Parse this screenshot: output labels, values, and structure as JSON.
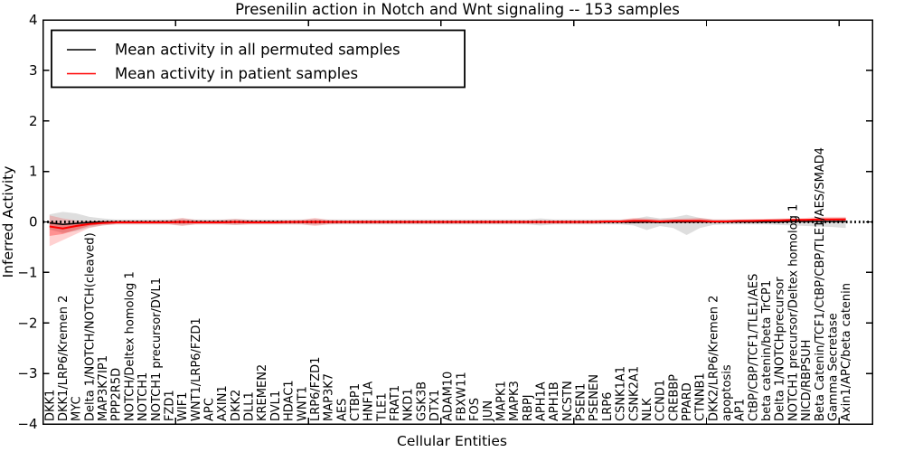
{
  "legend": {
    "items": [
      {
        "label": "Mean activity in all permuted samples",
        "color": "#000000"
      },
      {
        "label": "Mean activity in patient samples",
        "color": "#ff0000"
      }
    ]
  },
  "colors": {
    "permuted_line": "#000000",
    "permuted_band": "#000000",
    "patient_line": "#ff0000",
    "patient_band": "#ff0000",
    "zero_line": "#000000",
    "background": "#ffffff"
  },
  "chart_data": {
    "type": "line",
    "title": "Presenilin action in Notch and Wnt signaling -- 153 samples",
    "xlabel": "Cellular Entities",
    "ylabel": "Inferred Activity",
    "ylim": [
      -4,
      4
    ],
    "yticks": [
      -4,
      -3,
      -2,
      -1,
      0,
      1,
      2,
      3,
      4
    ],
    "xlim": [
      0,
      62.5
    ],
    "xticks": [
      10,
      20,
      30,
      40,
      50,
      60
    ],
    "grid": false,
    "zero_line": true,
    "legend_position": "upper left",
    "categories": [
      "DKK1",
      "DKK1/LRP6/Kremen 2",
      "MYC",
      "Delta 1/NOTCH/NOTCH(cleaved)",
      "MAP3K7IP1",
      "PPP2R5D",
      "NOTCH/Deltex homolog 1",
      "NOTCH1",
      "NOTCH1 precursor/DVL1",
      "FZD1",
      "WIF1",
      "WNT1/LRP6/FZD1",
      "APC",
      "AXIN1",
      "DKK2",
      "DLL1",
      "KREMEN2",
      "DVL1",
      "HDAC1",
      "WNT1",
      "LRP6/FZD1",
      "MAP3K7",
      "AES",
      "CTBP1",
      "HNF1A",
      "TLE1",
      "FRAT1",
      "NKD1",
      "GSK3B",
      "DTX1",
      "ADAM10",
      "FBXW11",
      "FOS",
      "JUN",
      "MAPK1",
      "MAPK3",
      "RBPJ",
      "APH1A",
      "APH1B",
      "NCSTN",
      "PSEN1",
      "PSENEN",
      "LRP6",
      "CSNK1A1",
      "CSNK2A1",
      "NLK",
      "CCND1",
      "CREBBP",
      "PPARD",
      "CTNNB1",
      "DKK2/LRP6/Kremen 2",
      "apoptosis",
      "AP1",
      "CtBP/CBP/TCF1/TLE1/AES",
      "beta catenin/beta TrCP1",
      "Delta 1/NOTCHprecursor",
      "NOTCH1 precursor/Deltex homolog 1",
      "NICD/RBPSUH",
      "Beta Catenin/TCF1/CtBP/CBP/TLE1/AES/SMAD4",
      "Gamma Secretase",
      "Axin1/APC/beta catenin"
    ],
    "series": [
      {
        "name": "Mean activity in all permuted samples",
        "color": "#000000",
        "line_width": 1.5,
        "band_color": "#000000",
        "band_opacity": 0.13,
        "values": [
          -0.02,
          -0.05,
          -0.03,
          -0.01,
          0,
          0,
          0,
          0,
          0,
          0,
          0,
          0,
          0,
          0,
          0,
          0,
          0,
          0,
          0,
          0,
          0,
          0,
          0,
          0,
          0,
          0,
          0,
          0,
          0,
          0,
          0,
          0,
          0,
          0,
          0,
          0,
          0,
          0,
          0,
          0,
          0,
          0,
          0,
          0,
          -0.01,
          0,
          -0.01,
          0,
          0,
          0,
          0,
          0,
          0,
          0,
          0,
          0,
          0.01,
          0.01,
          0.01,
          0.01,
          0.01
        ],
        "band_upper": [
          0.15,
          0.2,
          0.17,
          0.1,
          0.07,
          0.05,
          0.05,
          0.05,
          0.05,
          0.05,
          0.07,
          0.05,
          0.05,
          0.05,
          0.06,
          0.05,
          0.05,
          0.05,
          0.05,
          0.05,
          0.06,
          0.05,
          0.05,
          0.05,
          0.05,
          0.05,
          0.05,
          0.05,
          0.05,
          0.05,
          0.05,
          0.05,
          0.05,
          0.05,
          0.05,
          0.05,
          0.05,
          0.07,
          0.05,
          0.05,
          0.05,
          0.05,
          0.05,
          0.05,
          0.06,
          0.11,
          0.07,
          0.09,
          0.14,
          0.08,
          0.05,
          0.05,
          0.05,
          0.05,
          0.05,
          0.06,
          0.06,
          0.06,
          0.07,
          0.07,
          0.08
        ],
        "band_lower": [
          -0.15,
          -0.22,
          -0.18,
          -0.11,
          -0.07,
          -0.05,
          -0.05,
          -0.05,
          -0.05,
          -0.05,
          -0.07,
          -0.05,
          -0.05,
          -0.05,
          -0.06,
          -0.05,
          -0.05,
          -0.05,
          -0.05,
          -0.05,
          -0.06,
          -0.05,
          -0.05,
          -0.05,
          -0.05,
          -0.05,
          -0.05,
          -0.05,
          -0.05,
          -0.05,
          -0.05,
          -0.05,
          -0.05,
          -0.05,
          -0.05,
          -0.05,
          -0.05,
          -0.07,
          -0.05,
          -0.05,
          -0.05,
          -0.05,
          -0.05,
          -0.05,
          -0.07,
          -0.16,
          -0.08,
          -0.12,
          -0.26,
          -0.12,
          -0.06,
          -0.05,
          -0.05,
          -0.05,
          -0.05,
          -0.06,
          -0.07,
          -0.08,
          -0.09,
          -0.1,
          -0.12
        ]
      },
      {
        "name": "Mean activity in patient samples",
        "color": "#ff0000",
        "line_width": 2,
        "band_color": "#ff0000",
        "band_opacity": 0.18,
        "inner_band": true,
        "inner_band_opacity": 0.3,
        "values": [
          -0.09,
          -0.13,
          -0.08,
          -0.04,
          -0.02,
          -0.01,
          -0.01,
          -0.01,
          -0.01,
          -0.01,
          0,
          -0.01,
          -0.01,
          -0.01,
          0,
          -0.01,
          -0.01,
          -0.01,
          0,
          0,
          0,
          0,
          0,
          0,
          0,
          0,
          0,
          0,
          0,
          0,
          0,
          0,
          0,
          0,
          0,
          0,
          0,
          0,
          0,
          0,
          0,
          0,
          0.01,
          0.01,
          0.02,
          0.02,
          0.01,
          0.02,
          0.02,
          0.02,
          0.01,
          0.01,
          0.02,
          0.02,
          0.03,
          0.03,
          0.04,
          0.04,
          0.05,
          0.05,
          0.05
        ],
        "band_upper": [
          0.13,
          0.07,
          0.03,
          0.02,
          0.02,
          0.03,
          0.03,
          0.03,
          0.03,
          0.04,
          0.08,
          0.04,
          0.03,
          0.04,
          0.06,
          0.04,
          0.03,
          0.03,
          0.03,
          0.04,
          0.08,
          0.04,
          0.03,
          0.03,
          0.03,
          0.03,
          0.03,
          0.03,
          0.03,
          0.03,
          0.03,
          0.03,
          0.03,
          0.03,
          0.03,
          0.03,
          0.03,
          0.03,
          0.03,
          0.03,
          0.03,
          0.03,
          0.04,
          0.04,
          0.08,
          0.07,
          0.05,
          0.06,
          0.07,
          0.08,
          0.05,
          0.05,
          0.05,
          0.06,
          0.06,
          0.07,
          0.07,
          0.08,
          0.1,
          0.1,
          0.1
        ],
        "band_lower": [
          -0.48,
          -0.36,
          -0.24,
          -0.12,
          -0.07,
          -0.05,
          -0.05,
          -0.05,
          -0.05,
          -0.05,
          -0.08,
          -0.05,
          -0.05,
          -0.05,
          -0.06,
          -0.05,
          -0.05,
          -0.05,
          -0.05,
          -0.05,
          -0.08,
          -0.05,
          -0.04,
          -0.04,
          -0.04,
          -0.04,
          -0.04,
          -0.04,
          -0.04,
          -0.04,
          -0.04,
          -0.04,
          -0.04,
          -0.04,
          -0.04,
          -0.04,
          -0.04,
          -0.04,
          -0.04,
          -0.04,
          -0.04,
          -0.04,
          -0.03,
          -0.03,
          -0.03,
          -0.03,
          -0.02,
          -0.02,
          -0.02,
          -0.02,
          -0.02,
          -0.02,
          -0.01,
          -0.01,
          -0.01,
          -0.01,
          -0.01,
          0,
          0,
          0,
          0
        ]
      }
    ]
  }
}
